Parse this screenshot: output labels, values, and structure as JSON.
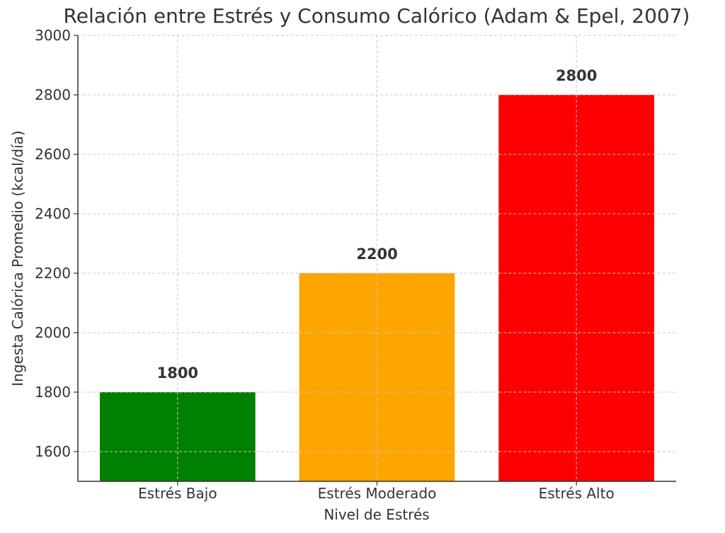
{
  "chart_data": {
    "type": "bar",
    "title": "Relación entre Estrés y Consumo Calórico (Adam & Epel, 2007)",
    "xlabel": "Nivel de Estrés",
    "ylabel": "Ingesta Calórica Promedio (kcal/día)",
    "categories": [
      "Estrés Bajo",
      "Estrés Moderado",
      "Estrés Alto"
    ],
    "values": [
      1800,
      2200,
      2800
    ],
    "data_labels": [
      "1800",
      "2200",
      "2800"
    ],
    "colors": [
      "#008000",
      "#FFA500",
      "#FF0000"
    ],
    "ylim": [
      1500,
      3000
    ],
    "yticks": [
      1600,
      1800,
      2000,
      2200,
      2400,
      2600,
      2800,
      3000
    ],
    "grid": true,
    "legend": "none"
  }
}
